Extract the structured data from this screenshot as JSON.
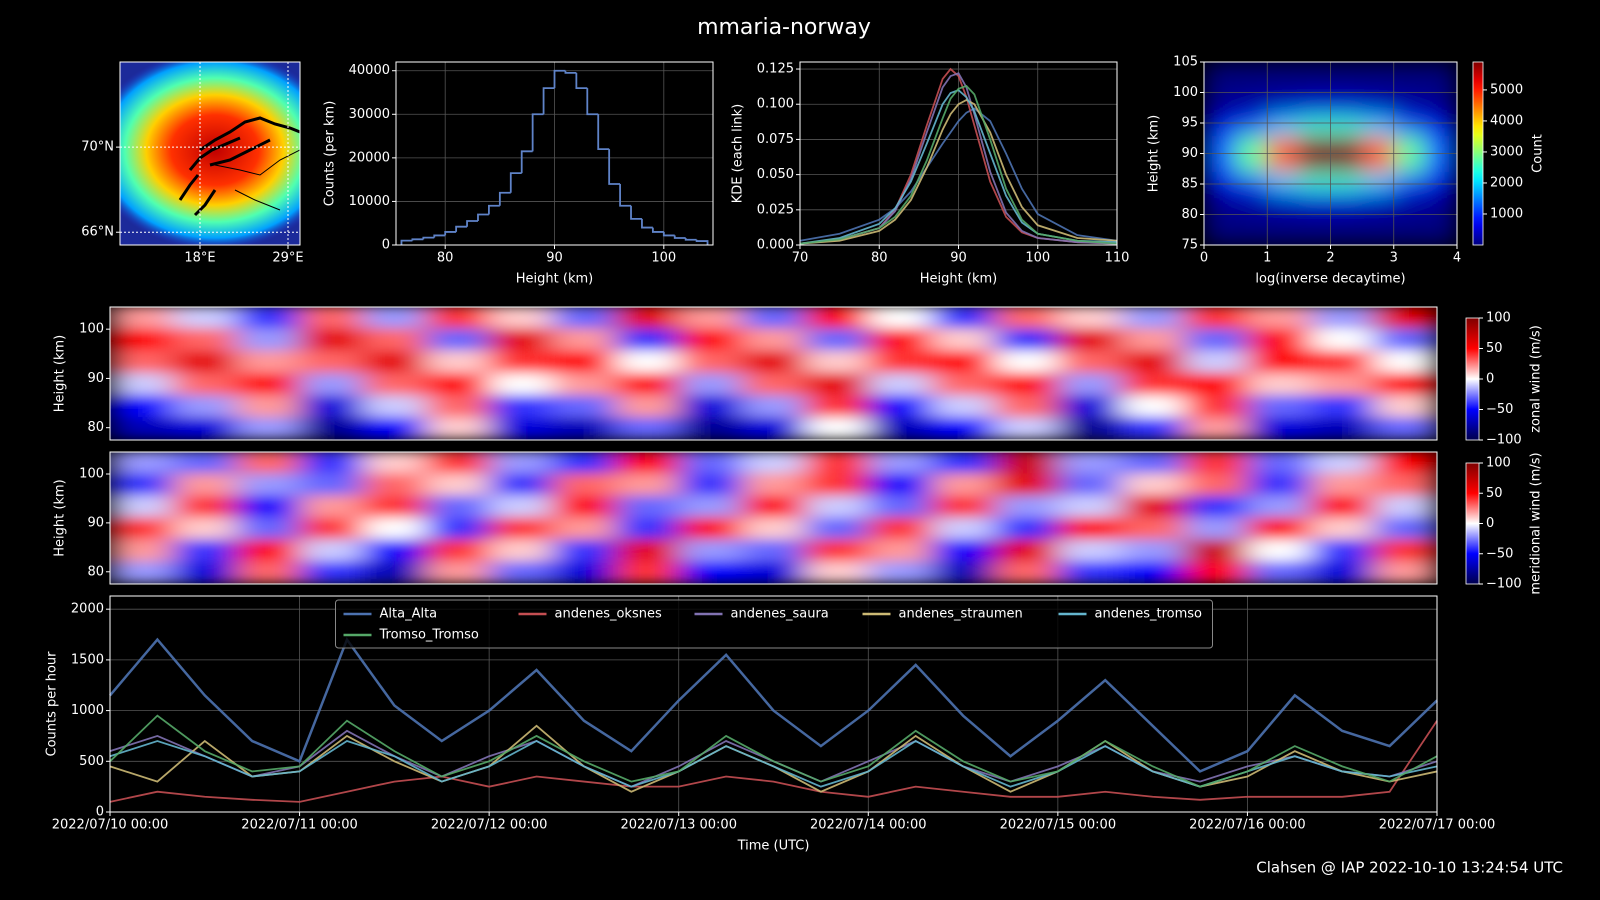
{
  "title": "mmaria-norway",
  "footer": "Clahsen @ IAP 2022-10-10 13:24:54 UTC",
  "chart_data": [
    {
      "type": "map",
      "xlim": [
        8,
        30.5
      ],
      "ylim": [
        65.4,
        74
      ],
      "xticks": [
        {
          "value": 18,
          "label": "18°E"
        },
        {
          "value": 29,
          "label": "29°E"
        }
      ],
      "yticks": [
        {
          "value": 66,
          "label": "66°N"
        },
        {
          "value": 70,
          "label": "70°N"
        }
      ],
      "grid": true
    },
    {
      "type": "histogram",
      "color": "#5f83c8",
      "xlabel": "Height (km)",
      "ylabel": "Counts (per km)",
      "bins": [
        76,
        77,
        78,
        79,
        80,
        81,
        82,
        83,
        84,
        85,
        86,
        87,
        88,
        89,
        90,
        91,
        92,
        93,
        94,
        95,
        96,
        97,
        98,
        99,
        100,
        101,
        102,
        103,
        104
      ],
      "values": [
        1000,
        1300,
        1700,
        2200,
        3000,
        4200,
        5500,
        7000,
        9000,
        12000,
        16500,
        21500,
        30000,
        36000,
        40000,
        39500,
        36000,
        30000,
        22000,
        14000,
        9000,
        6000,
        4000,
        3000,
        2200,
        1600,
        1200,
        900
      ],
      "xlim": [
        75.5,
        104.5
      ],
      "ylim": [
        0,
        42000
      ],
      "xticks": [
        80,
        90,
        100
      ],
      "yticks": [
        0,
        10000,
        20000,
        30000,
        40000
      ],
      "grid": true
    },
    {
      "type": "line",
      "xlabel": "Height (km)",
      "ylabel": "KDE (each link)",
      "x": [
        70,
        75,
        80,
        82,
        84,
        86,
        88,
        89,
        90,
        91,
        92,
        94,
        96,
        98,
        100,
        105,
        110
      ],
      "series": [
        {
          "color": "#4c72b0",
          "values": [
            0.003,
            0.008,
            0.018,
            0.026,
            0.038,
            0.055,
            0.072,
            0.08,
            0.088,
            0.094,
            0.097,
            0.088,
            0.065,
            0.04,
            0.022,
            0.007,
            0.003
          ]
        },
        {
          "color": "#c44e52",
          "values": [
            0.001,
            0.004,
            0.012,
            0.025,
            0.05,
            0.085,
            0.118,
            0.125,
            0.12,
            0.105,
            0.085,
            0.045,
            0.02,
            0.009,
            0.005,
            0.002,
            0.001
          ]
        },
        {
          "color": "#8172b2",
          "values": [
            0.001,
            0.004,
            0.012,
            0.024,
            0.047,
            0.08,
            0.112,
            0.12,
            0.122,
            0.112,
            0.093,
            0.052,
            0.023,
            0.01,
            0.005,
            0.002,
            0.001
          ]
        },
        {
          "color": "#ccb974",
          "values": [
            0.001,
            0.003,
            0.01,
            0.018,
            0.032,
            0.055,
            0.082,
            0.093,
            0.1,
            0.103,
            0.1,
            0.08,
            0.05,
            0.027,
            0.014,
            0.005,
            0.003
          ]
        },
        {
          "color": "#64b5cd",
          "values": [
            0.001,
            0.005,
            0.015,
            0.026,
            0.045,
            0.072,
            0.1,
            0.108,
            0.11,
            0.105,
            0.095,
            0.065,
            0.035,
            0.016,
            0.008,
            0.003,
            0.002
          ]
        },
        {
          "color": "#55a868",
          "values": [
            0.001,
            0.004,
            0.012,
            0.02,
            0.035,
            0.06,
            0.09,
            0.104,
            0.111,
            0.113,
            0.107,
            0.075,
            0.04,
            0.018,
            0.008,
            0.003,
            0.001
          ]
        }
      ],
      "xlim": [
        70,
        110
      ],
      "ylim": [
        0,
        0.13
      ],
      "xticks": [
        70,
        80,
        90,
        100,
        110
      ],
      "yticks": [
        {
          "value": 0,
          "label": "0.000"
        },
        0.025,
        {
          "value": 0.05,
          "label": "0.050"
        },
        0.075,
        {
          "value": 0.1,
          "label": "0.100"
        },
        0.125
      ],
      "grid": true
    },
    {
      "type": "heatmap",
      "colormap": "jet",
      "xlabel": "log(inverse decaytime)",
      "ylabel": "Height (km)",
      "colorbar_label": "Count",
      "x": [
        0.25,
        0.75,
        1.25,
        1.75,
        2.25,
        2.75,
        3.25,
        3.75
      ],
      "y": [
        76.5,
        79.5,
        82.5,
        85.5,
        88.5,
        91.5,
        94.5,
        97.5,
        100.5,
        103.5
      ],
      "values": [
        [
          1,
          2,
          3,
          3,
          3,
          3,
          2,
          1
        ],
        [
          14,
          30,
          49,
          63,
          63,
          49,
          30,
          14
        ],
        [
          127,
          270,
          445,
          572,
          572,
          445,
          270,
          127
        ],
        [
          561,
          1189,
          1960,
          2515,
          2515,
          1960,
          1189,
          561
        ],
        [
          1300,
          2800,
          4600,
          5900,
          5900,
          4600,
          2800,
          1300
        ],
        [
          1300,
          2800,
          4600,
          5900,
          5900,
          4600,
          2800,
          1300
        ],
        [
          561,
          1189,
          1960,
          2515,
          2515,
          1960,
          1189,
          561
        ],
        [
          127,
          270,
          445,
          572,
          572,
          445,
          270,
          127
        ],
        [
          14,
          30,
          49,
          63,
          63,
          49,
          30,
          14
        ],
        [
          1,
          2,
          3,
          3,
          3,
          3,
          2,
          1
        ]
      ],
      "xlim": [
        0,
        4
      ],
      "ylim": [
        75,
        105
      ],
      "xticks": [
        0,
        1,
        2,
        3,
        4
      ],
      "yticks": [
        75,
        80,
        85,
        90,
        95,
        100,
        105
      ],
      "clim": [
        0,
        5900
      ],
      "cticks": [
        1000,
        2000,
        3000,
        4000,
        5000
      ],
      "grid": true
    },
    {
      "type": "heatmap",
      "colormap": "seismic",
      "ylabel": "Height (km)",
      "colorbar_label": "zonal wind (m/s)",
      "x": [
        "2022/07/10 04:00",
        "2022/07/10 12:00",
        "2022/07/10 20:00",
        "2022/07/11 04:00",
        "2022/07/11 12:00",
        "2022/07/11 20:00",
        "2022/07/12 04:00",
        "2022/07/12 12:00",
        "2022/07/12 20:00",
        "2022/07/13 04:00",
        "2022/07/13 12:00",
        "2022/07/13 20:00",
        "2022/07/14 04:00",
        "2022/07/14 12:00",
        "2022/07/14 20:00",
        "2022/07/15 04:00",
        "2022/07/15 12:00",
        "2022/07/15 20:00",
        "2022/07/16 04:00",
        "2022/07/16 12:00",
        "2022/07/16 20:00"
      ],
      "y": [
        80,
        84.5,
        89,
        93.5,
        98,
        102.5
      ],
      "values": [
        [
          -70,
          -60,
          -20,
          -80,
          -50,
          10,
          -60,
          -70,
          -30,
          -80,
          -60,
          0,
          -70,
          -50,
          -10,
          -80,
          -40,
          20,
          -60,
          -70,
          -30
        ],
        [
          -50,
          -20,
          20,
          -60,
          -10,
          30,
          -40,
          -30,
          20,
          -60,
          -20,
          40,
          -50,
          -10,
          30,
          -60,
          0,
          40,
          -30,
          -40,
          10
        ],
        [
          -10,
          30,
          50,
          -20,
          30,
          50,
          0,
          20,
          50,
          -20,
          30,
          60,
          -10,
          30,
          50,
          -20,
          40,
          50,
          10,
          20,
          50
        ],
        [
          30,
          60,
          20,
          30,
          60,
          10,
          40,
          50,
          0,
          30,
          60,
          10,
          40,
          50,
          0,
          30,
          60,
          -10,
          50,
          40,
          0
        ],
        [
          50,
          30,
          -20,
          60,
          30,
          -30,
          60,
          20,
          -40,
          50,
          20,
          -30,
          50,
          10,
          -40,
          60,
          20,
          -30,
          50,
          0,
          -30
        ],
        [
          20,
          -10,
          -40,
          30,
          -20,
          40,
          10,
          -30,
          60,
          20,
          -30,
          50,
          0,
          -40,
          30,
          10,
          -20,
          40,
          20,
          -20,
          60
        ]
      ],
      "xlim": [
        "2022/07/10 00:00",
        "2022/07/17 00:00"
      ],
      "ylim": [
        77.5,
        104.5
      ],
      "yticks": [
        80,
        90,
        100
      ],
      "clim": [
        -100,
        100
      ],
      "cticks": [
        {
          "value": -100,
          "label": "−100"
        },
        {
          "value": -50,
          "label": "−50"
        },
        0,
        50,
        100
      ],
      "grid": false
    },
    {
      "type": "heatmap",
      "colormap": "seismic",
      "ylabel": "Height (km)",
      "colorbar_label": "meridional wind (m/s)",
      "x": [
        "2022/07/10 04:00",
        "2022/07/10 12:00",
        "2022/07/10 20:00",
        "2022/07/11 04:00",
        "2022/07/11 12:00",
        "2022/07/11 20:00",
        "2022/07/12 04:00",
        "2022/07/12 12:00",
        "2022/07/12 20:00",
        "2022/07/13 04:00",
        "2022/07/13 12:00",
        "2022/07/13 20:00",
        "2022/07/14 04:00",
        "2022/07/14 12:00",
        "2022/07/14 20:00",
        "2022/07/15 04:00",
        "2022/07/15 12:00",
        "2022/07/15 20:00",
        "2022/07/16 04:00",
        "2022/07/16 12:00",
        "2022/07/16 20:00"
      ],
      "y": [
        80,
        84.5,
        89,
        93.5,
        98,
        102.5
      ],
      "values": [
        [
          -20,
          -60,
          30,
          -40,
          -70,
          20,
          -30,
          -60,
          40,
          -50,
          -60,
          10,
          -20,
          -70,
          30,
          -40,
          -50,
          50,
          -30,
          -60,
          20
        ],
        [
          20,
          -40,
          50,
          -10,
          -50,
          40,
          10,
          -40,
          60,
          -20,
          -30,
          40,
          20,
          -50,
          60,
          -10,
          -20,
          70,
          0,
          -40,
          40
        ],
        [
          40,
          10,
          -30,
          40,
          0,
          -40,
          40,
          20,
          -40,
          50,
          10,
          -30,
          40,
          -10,
          -40,
          50,
          30,
          -20,
          50,
          10,
          -30
        ],
        [
          -10,
          40,
          -50,
          20,
          40,
          -30,
          -10,
          50,
          -30,
          -20,
          50,
          -10,
          -30,
          40,
          -20,
          -10,
          60,
          -40,
          -20,
          50,
          -10
        ],
        [
          -40,
          20,
          -20,
          -30,
          30,
          10,
          -40,
          30,
          20,
          -40,
          20,
          40,
          -50,
          20,
          60,
          -30,
          10,
          30,
          -40,
          20,
          30
        ],
        [
          -20,
          -30,
          30,
          -40,
          10,
          40,
          -20,
          -40,
          50,
          -30,
          -10,
          40,
          -20,
          -40,
          70,
          -20,
          -30,
          40,
          -30,
          -10,
          50
        ]
      ],
      "xlim": [
        "2022/07/10 00:00",
        "2022/07/17 00:00"
      ],
      "ylim": [
        77.5,
        104.5
      ],
      "yticks": [
        80,
        90,
        100
      ],
      "clim": [
        -100,
        100
      ],
      "cticks": [
        {
          "value": -100,
          "label": "−100"
        },
        {
          "value": -50,
          "label": "−50"
        },
        0,
        50,
        100
      ],
      "grid": false
    },
    {
      "type": "line",
      "xlabel": "Time (UTC)",
      "ylabel": "Counts per hour",
      "legend": "upper center",
      "x": [
        "2022/07/10 00:00",
        "2022/07/10 06:00",
        "2022/07/10 12:00",
        "2022/07/10 18:00",
        "2022/07/11 00:00",
        "2022/07/11 06:00",
        "2022/07/11 12:00",
        "2022/07/11 18:00",
        "2022/07/12 00:00",
        "2022/07/12 06:00",
        "2022/07/12 12:00",
        "2022/07/12 18:00",
        "2022/07/13 00:00",
        "2022/07/13 06:00",
        "2022/07/13 12:00",
        "2022/07/13 18:00",
        "2022/07/14 00:00",
        "2022/07/14 06:00",
        "2022/07/14 12:00",
        "2022/07/14 18:00",
        "2022/07/15 00:00",
        "2022/07/15 06:00",
        "2022/07/15 12:00",
        "2022/07/15 18:00",
        "2022/07/16 00:00",
        "2022/07/16 06:00",
        "2022/07/16 12:00",
        "2022/07/16 18:00",
        "2022/07/17 00:00"
      ],
      "series": [
        {
          "name": "Alta_Alta",
          "color": "#4c72b0",
          "values": [
            1150,
            1700,
            1150,
            700,
            500,
            1700,
            1050,
            700,
            1000,
            1400,
            900,
            600,
            1100,
            1550,
            1000,
            650,
            1000,
            1450,
            950,
            550,
            900,
            1300,
            850,
            400,
            600,
            1150,
            800,
            650,
            1100
          ]
        },
        {
          "name": "andenes_oksnes",
          "color": "#c44e52",
          "values": [
            100,
            200,
            150,
            120,
            100,
            200,
            300,
            350,
            250,
            350,
            300,
            250,
            250,
            350,
            300,
            200,
            150,
            250,
            200,
            150,
            150,
            200,
            150,
            120,
            150,
            150,
            150,
            200,
            900
          ]
        },
        {
          "name": "andenes_saura",
          "color": "#8172b2",
          "values": [
            600,
            750,
            550,
            350,
            450,
            800,
            550,
            350,
            550,
            700,
            450,
            250,
            450,
            700,
            500,
            300,
            500,
            700,
            450,
            300,
            450,
            650,
            400,
            300,
            450,
            550,
            400,
            350,
            500
          ]
        },
        {
          "name": "andenes_straumen",
          "color": "#ccb974",
          "values": [
            450,
            300,
            700,
            350,
            400,
            750,
            500,
            300,
            450,
            850,
            450,
            200,
            400,
            650,
            450,
            200,
            400,
            750,
            450,
            200,
            400,
            700,
            400,
            250,
            350,
            600,
            400,
            300,
            400
          ]
        },
        {
          "name": "andenes_tromso",
          "color": "#64b5cd",
          "values": [
            550,
            700,
            550,
            350,
            400,
            700,
            550,
            300,
            450,
            700,
            450,
            250,
            400,
            650,
            450,
            250,
            400,
            700,
            450,
            250,
            400,
            650,
            400,
            250,
            400,
            550,
            400,
            350,
            450
          ]
        },
        {
          "name": "Tromso_Tromso",
          "color": "#55a868",
          "values": [
            500,
            950,
            600,
            400,
            450,
            900,
            600,
            350,
            500,
            750,
            500,
            300,
            400,
            750,
            500,
            300,
            450,
            800,
            500,
            300,
            400,
            700,
            450,
            250,
            400,
            650,
            450,
            300,
            550
          ]
        }
      ],
      "xlim": [
        "2022/07/10 00:00",
        "2022/07/17 00:00"
      ],
      "ylim": [
        0,
        2130
      ],
      "xticks": [
        "2022/07/10 00:00",
        "2022/07/11 00:00",
        "2022/07/12 00:00",
        "2022/07/13 00:00",
        "2022/07/14 00:00",
        "2022/07/15 00:00",
        "2022/07/16 00:00",
        "2022/07/17 00:00"
      ],
      "yticks": [
        0,
        500,
        1000,
        1500,
        2000
      ],
      "grid": true
    }
  ]
}
